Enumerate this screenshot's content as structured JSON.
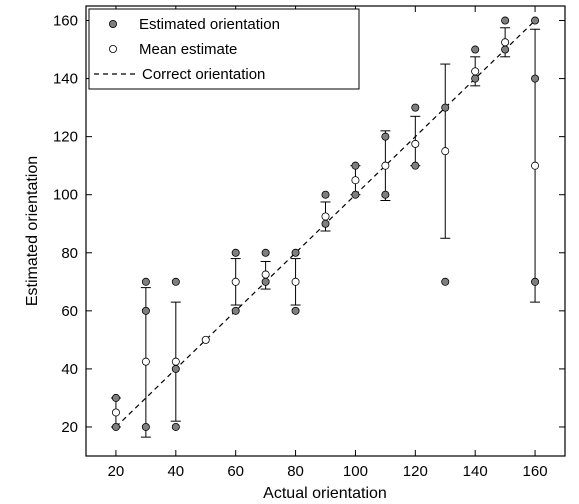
{
  "chart_data": {
    "type": "scatter",
    "xlabel": "Actual orientation",
    "ylabel": "Estimated orientation",
    "xlim": [
      10,
      170
    ],
    "ylim": [
      10,
      165
    ],
    "xticks": [
      20,
      40,
      60,
      80,
      100,
      120,
      140,
      160
    ],
    "yticks": [
      20,
      40,
      60,
      80,
      100,
      120,
      140,
      160
    ],
    "grid": false,
    "legend_position": "top-left",
    "colors": {
      "estimated": "#7f7f7f",
      "mean": "#ffffff",
      "line": "#000000"
    },
    "series": [
      {
        "name": "Estimated orientation",
        "marker": "filled-circle",
        "points": [
          [
            20,
            30
          ],
          [
            20,
            20
          ],
          [
            30,
            70
          ],
          [
            30,
            60
          ],
          [
            30,
            20
          ],
          [
            40,
            70
          ],
          [
            40,
            40
          ],
          [
            40,
            20
          ],
          [
            60,
            80
          ],
          [
            60,
            60
          ],
          [
            70,
            80
          ],
          [
            70,
            70
          ],
          [
            80,
            80
          ],
          [
            80,
            60
          ],
          [
            90,
            100
          ],
          [
            90,
            90
          ],
          [
            100,
            110
          ],
          [
            100,
            100
          ],
          [
            110,
            120
          ],
          [
            110,
            100
          ],
          [
            120,
            130
          ],
          [
            120,
            110
          ],
          [
            130,
            130
          ],
          [
            130,
            70
          ],
          [
            140,
            150
          ],
          [
            140,
            140
          ],
          [
            150,
            160
          ],
          [
            150,
            150
          ],
          [
            160,
            160
          ],
          [
            160,
            140
          ],
          [
            160,
            70
          ]
        ]
      },
      {
        "name": "Mean estimate",
        "marker": "open-circle",
        "points": [
          [
            20,
            25,
            20,
            30
          ],
          [
            30,
            42.5,
            16.5,
            68
          ],
          [
            40,
            42.5,
            22,
            63
          ],
          [
            50,
            50,
            50,
            50
          ],
          [
            60,
            70,
            62,
            78
          ],
          [
            70,
            72.5,
            67.5,
            77
          ],
          [
            80,
            70,
            62,
            78
          ],
          [
            90,
            92.5,
            87.5,
            97.5
          ],
          [
            100,
            105,
            100,
            110
          ],
          [
            110,
            110,
            98,
            122
          ],
          [
            120,
            117.5,
            110,
            127
          ],
          [
            130,
            115,
            85,
            145
          ],
          [
            140,
            142.5,
            137.5,
            147.5
          ],
          [
            150,
            152.5,
            147.5,
            157.5
          ],
          [
            160,
            110,
            63,
            157
          ]
        ]
      },
      {
        "name": "Correct orientation",
        "style": "dashed-line",
        "x": [
          20,
          160
        ],
        "y": [
          20,
          160
        ]
      }
    ]
  }
}
